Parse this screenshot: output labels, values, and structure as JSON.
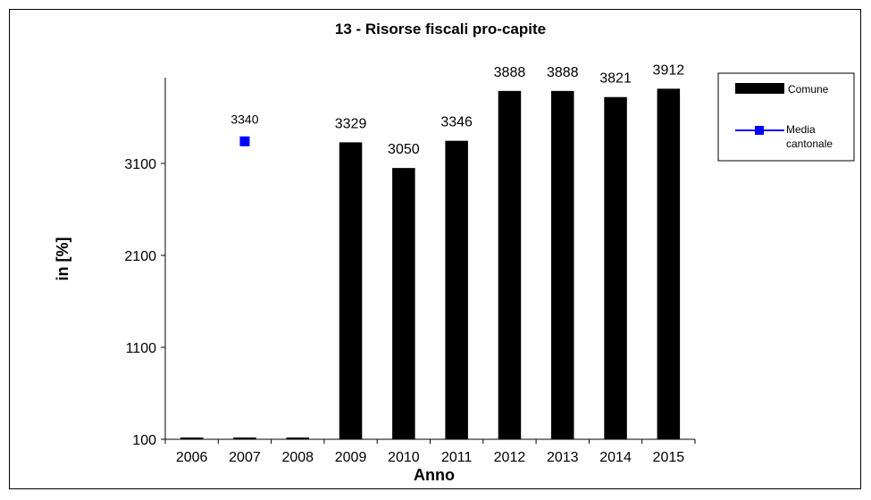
{
  "chart_data": {
    "type": "bar",
    "title": "13 - Risorse fiscali pro-capite",
    "xlabel": "Anno",
    "ylabel": "in  [%]",
    "ylim": [
      100,
      4100
    ],
    "yticks": [
      100,
      1100,
      2100,
      3100
    ],
    "categories": [
      "2006",
      "2007",
      "2008",
      "2009",
      "2010",
      "2011",
      "2012",
      "2013",
      "2014",
      "2015"
    ],
    "series": [
      {
        "name": "Comune",
        "kind": "bar",
        "color": "#000000",
        "values": [
          100,
          100,
          100,
          3329,
          3050,
          3346,
          3888,
          3888,
          3821,
          3912
        ],
        "labels": [
          "",
          "",
          "",
          "3329",
          "3050",
          "3346",
          "3888",
          "3888",
          "3821",
          "3912"
        ]
      },
      {
        "name": "Media cantonale",
        "name_lines": [
          "Media",
          "cantonale"
        ],
        "kind": "point",
        "color": "#0000ff",
        "values": [
          null,
          3340,
          null,
          null,
          null,
          null,
          null,
          null,
          null,
          null
        ],
        "labels": [
          "",
          "3340",
          "",
          "",
          "",
          "",
          "",
          "",
          "",
          ""
        ]
      }
    ],
    "grid": false,
    "legend_position": "top-right"
  }
}
